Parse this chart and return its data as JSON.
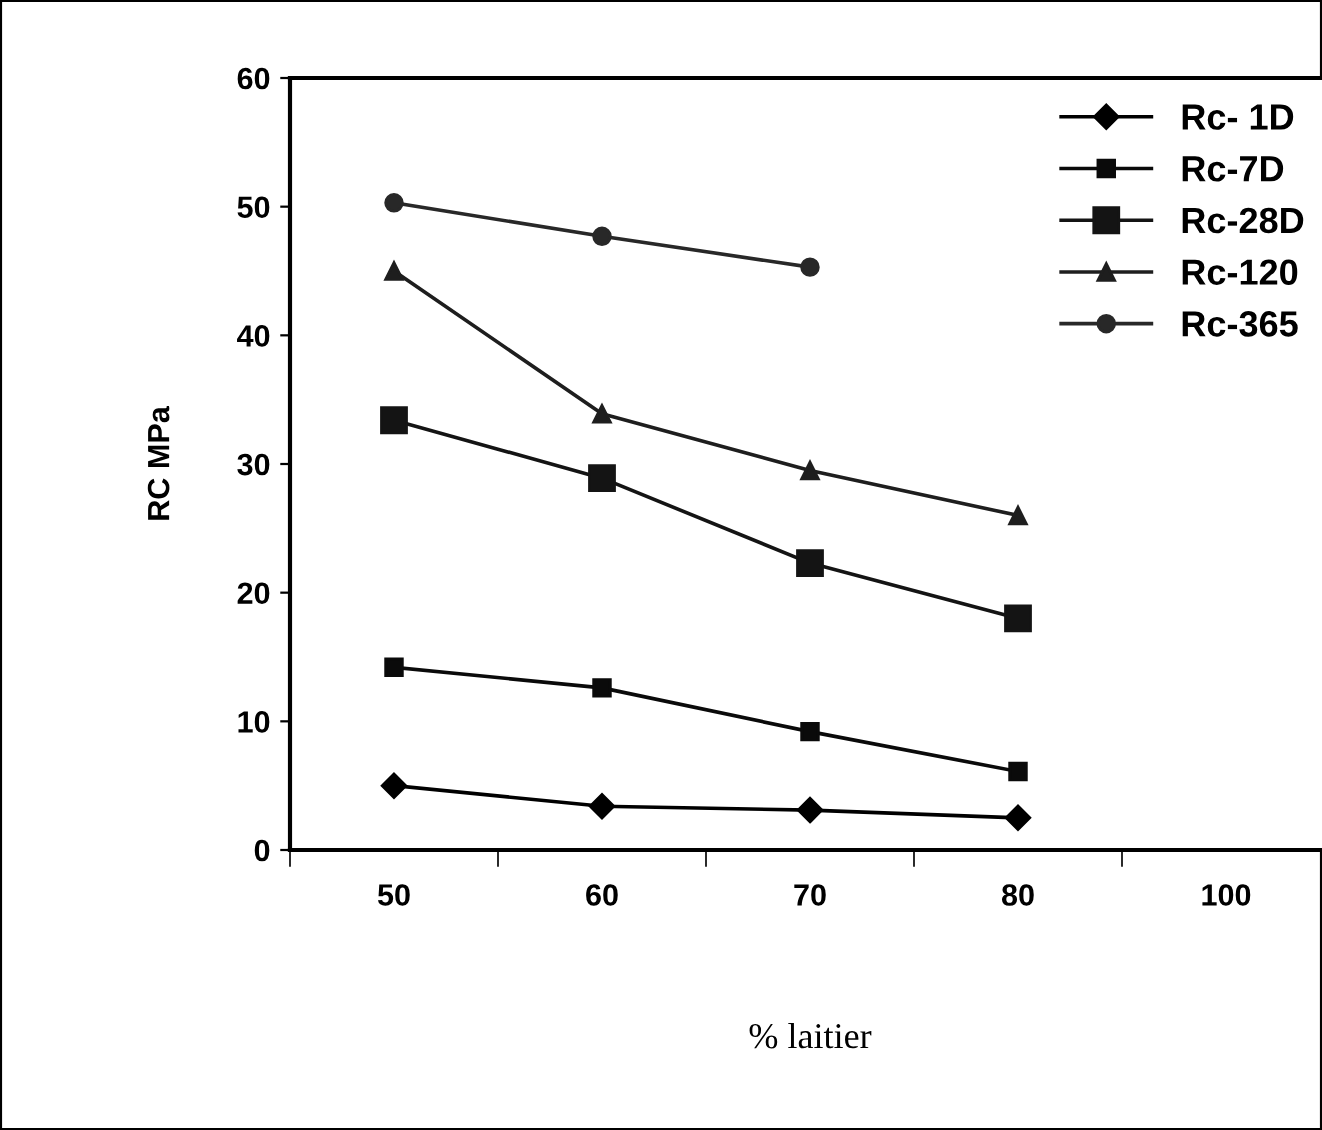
{
  "chart_data": {
    "type": "line",
    "xlabel": "% laitier",
    "ylabel": "RC MPa",
    "categories": [
      "50",
      "60",
      "70",
      "80",
      "100"
    ],
    "ylim": [
      0,
      60
    ],
    "yticks": [
      0,
      10,
      20,
      30,
      40,
      50,
      60
    ],
    "grid": false,
    "legend": "top right",
    "line_style": "solid",
    "series": [
      {
        "name": "Rc- 1D",
        "color": "#000000",
        "marker": "diamond",
        "values": [
          5.0,
          3.4,
          3.1,
          2.5,
          null
        ]
      },
      {
        "name": "Rc-7D",
        "color": "#0a0a0a",
        "marker": "square",
        "values": [
          14.2,
          12.6,
          9.2,
          6.1,
          null
        ]
      },
      {
        "name": "Rc-28D",
        "color": "#141414",
        "marker": "square",
        "values": [
          33.4,
          28.9,
          22.3,
          18.0,
          null
        ]
      },
      {
        "name": "Rc-120",
        "color": "#1e1e1e",
        "marker": "triangle",
        "values": [
          45.0,
          33.9,
          29.5,
          26.0,
          null
        ]
      },
      {
        "name": "Rc-365",
        "color": "#282828",
        "marker": "circle",
        "values": [
          50.3,
          47.7,
          45.3,
          null,
          null
        ]
      }
    ]
  }
}
